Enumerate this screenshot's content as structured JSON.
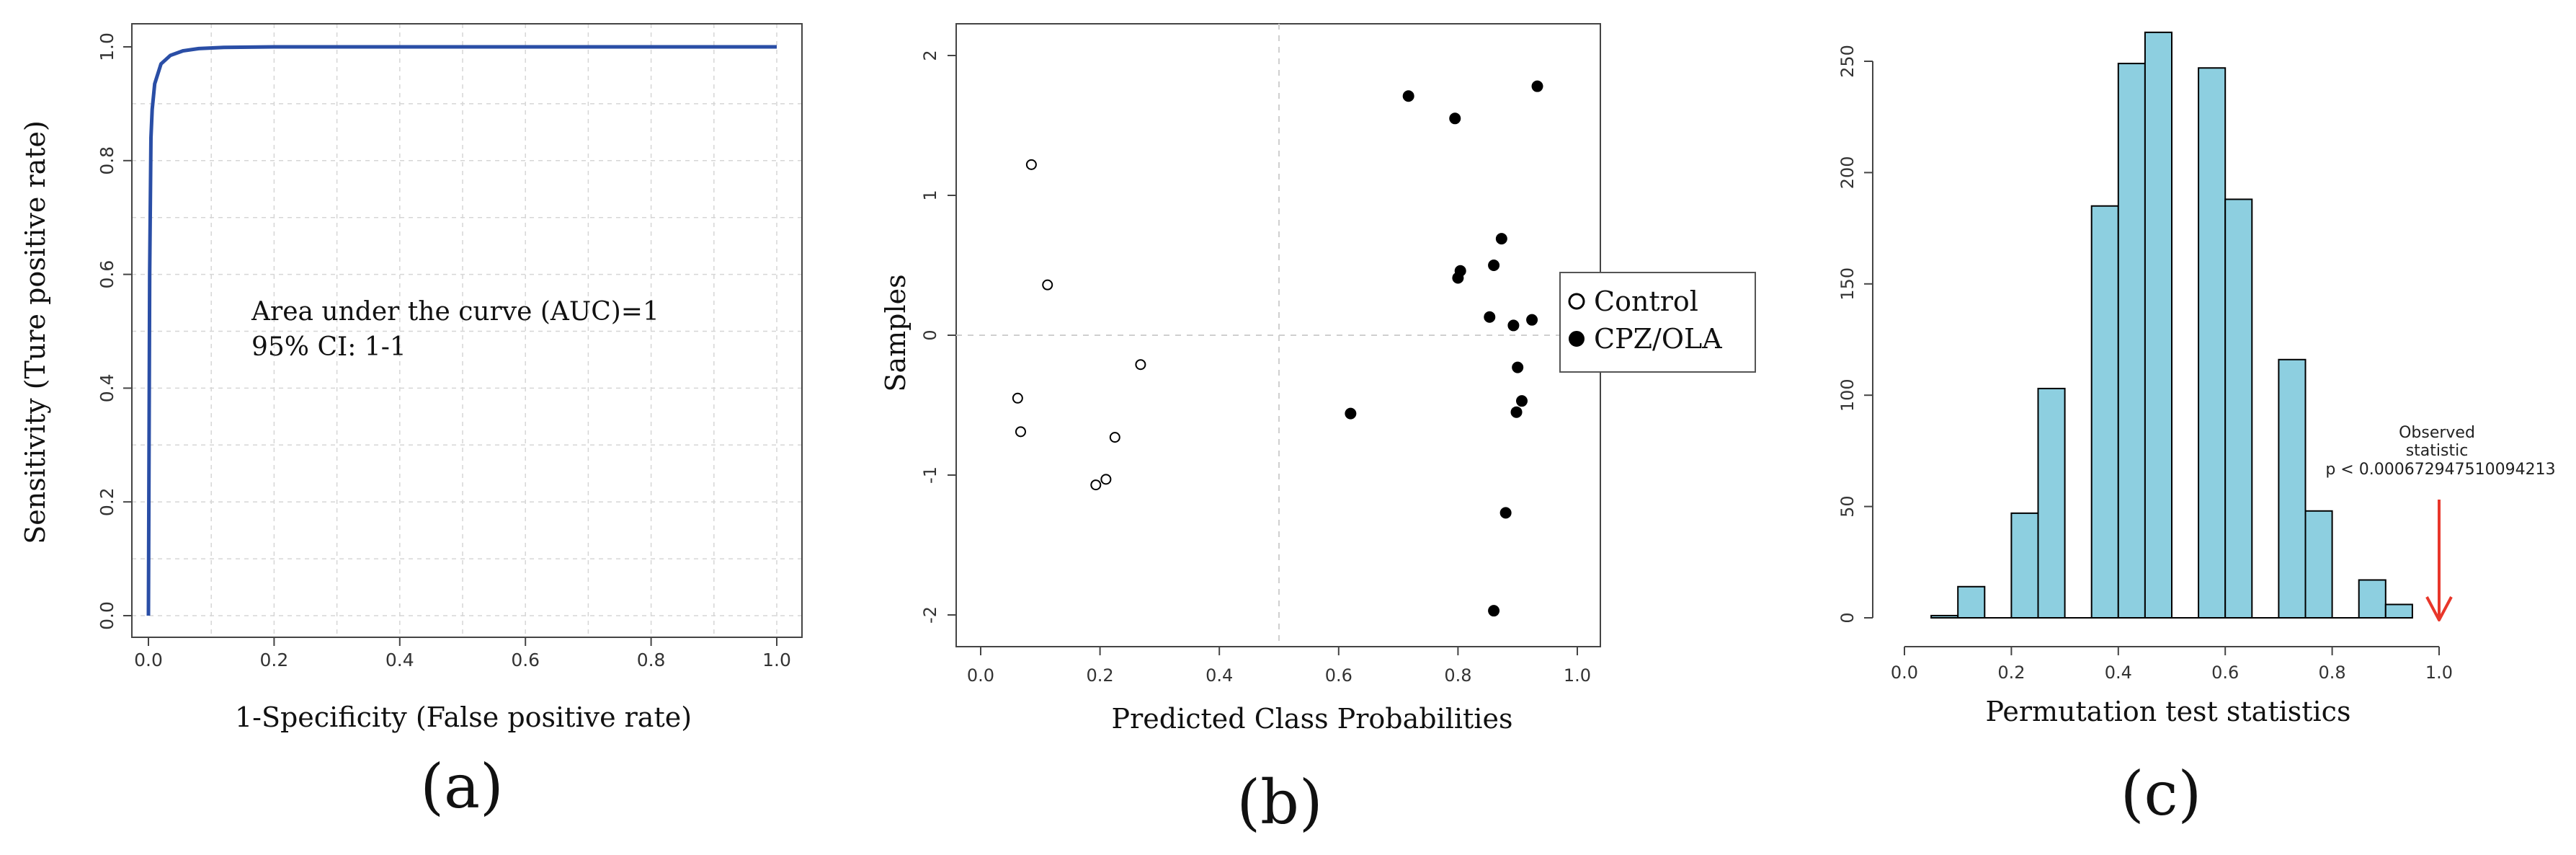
{
  "chart_data": [
    {
      "type": "line",
      "panel_label": "(a)",
      "xlabel": "1-Specificity (False positive rate)",
      "ylabel": "Sensitivity (Ture positive rate)",
      "xlim": [
        0,
        1
      ],
      "ylim": [
        0,
        1
      ],
      "x_ticks": [
        "0.0",
        "0.2",
        "0.4",
        "0.6",
        "0.8",
        "1.0"
      ],
      "y_ticks": [
        "0.0",
        "0.2",
        "0.4",
        "0.6",
        "0.8",
        "1.0"
      ],
      "grid": true,
      "annotation": [
        "Area under the curve (AUC)=1",
        "95% CI: 1-1"
      ],
      "series": [
        {
          "color": "#2a4ea6",
          "x": [
            0,
            0.002,
            0.004,
            0.006,
            0.01,
            0.02,
            0.035,
            0.055,
            0.08,
            0.12,
            0.2,
            0.4,
            1.0
          ],
          "y": [
            0,
            0.6,
            0.84,
            0.89,
            0.935,
            0.97,
            0.985,
            0.993,
            0.997,
            0.999,
            1.0,
            1.0,
            1.0
          ]
        }
      ]
    },
    {
      "type": "scatter",
      "panel_label": "(b)",
      "xlabel": "Predicted Class Probabilities",
      "ylabel": "Samples",
      "xlim": [
        0,
        1
      ],
      "ylim": [
        -2,
        2
      ],
      "x_ticks": [
        "0.0",
        "0.2",
        "0.4",
        "0.6",
        "0.8",
        "1.0"
      ],
      "y_ticks": [
        "-2",
        "-1",
        "0",
        "1",
        "2"
      ],
      "reference_lines": {
        "x": 0.5,
        "y": 0
      },
      "legend_position": "right",
      "series": [
        {
          "name": "Control",
          "marker": "open-circle",
          "points": [
            [
              0.085,
              1.22
            ],
            [
              0.112,
              0.36
            ],
            [
              0.268,
              -0.21
            ],
            [
              0.062,
              -0.45
            ],
            [
              0.067,
              -0.69
            ],
            [
              0.225,
              -0.73
            ],
            [
              0.21,
              -1.03
            ],
            [
              0.193,
              -1.07
            ]
          ]
        },
        {
          "name": "CPZ/OLA",
          "marker": "filled-circle",
          "points": [
            [
              0.717,
              1.71
            ],
            [
              0.795,
              1.55
            ],
            [
              0.933,
              1.78
            ],
            [
              0.873,
              0.69
            ],
            [
              0.804,
              0.46
            ],
            [
              0.8,
              0.41
            ],
            [
              0.86,
              0.5
            ],
            [
              0.853,
              0.13
            ],
            [
              0.924,
              0.11
            ],
            [
              0.893,
              0.07
            ],
            [
              0.9,
              -0.23
            ],
            [
              0.907,
              -0.47
            ],
            [
              0.898,
              -0.55
            ],
            [
              0.62,
              -0.56
            ],
            [
              0.88,
              -1.27
            ],
            [
              0.86,
              -1.97
            ]
          ]
        }
      ]
    },
    {
      "type": "bar",
      "panel_label": "(c)",
      "xlabel": "Permutation test statistics",
      "ylabel": "",
      "xlim": [
        0,
        1
      ],
      "ylim": [
        0,
        260
      ],
      "x_ticks": [
        "0.0",
        "0.2",
        "0.4",
        "0.6",
        "0.8",
        "1.0"
      ],
      "y_ticks": [
        "0",
        "50",
        "100",
        "150",
        "200",
        "250"
      ],
      "bar_color": "#8dcfe0",
      "bins": [
        {
          "x0": 0.05,
          "x1": 0.1,
          "count": 1
        },
        {
          "x0": 0.1,
          "x1": 0.15,
          "count": 14
        },
        {
          "x0": 0.15,
          "x1": 0.2,
          "count": 0
        },
        {
          "x0": 0.2,
          "x1": 0.25,
          "count": 47
        },
        {
          "x0": 0.25,
          "x1": 0.3,
          "count": 103
        },
        {
          "x0": 0.3,
          "x1": 0.35,
          "count": 0
        },
        {
          "x0": 0.35,
          "x1": 0.4,
          "count": 185
        },
        {
          "x0": 0.4,
          "x1": 0.45,
          "count": 249
        },
        {
          "x0": 0.45,
          "x1": 0.5,
          "count": 263
        },
        {
          "x0": 0.5,
          "x1": 0.55,
          "count": 0
        },
        {
          "x0": 0.55,
          "x1": 0.6,
          "count": 247
        },
        {
          "x0": 0.6,
          "x1": 0.65,
          "count": 188
        },
        {
          "x0": 0.65,
          "x1": 0.7,
          "count": 0
        },
        {
          "x0": 0.7,
          "x1": 0.75,
          "count": 116
        },
        {
          "x0": 0.75,
          "x1": 0.8,
          "count": 48
        },
        {
          "x0": 0.8,
          "x1": 0.85,
          "count": 0
        },
        {
          "x0": 0.85,
          "x1": 0.9,
          "count": 17
        },
        {
          "x0": 0.9,
          "x1": 0.95,
          "count": 6
        }
      ],
      "observed": {
        "x": 1.0,
        "arrow_color": "#e8362a",
        "label": [
          "Observed",
          "statistic",
          "p < 0.000672947510094213"
        ]
      }
    }
  ]
}
